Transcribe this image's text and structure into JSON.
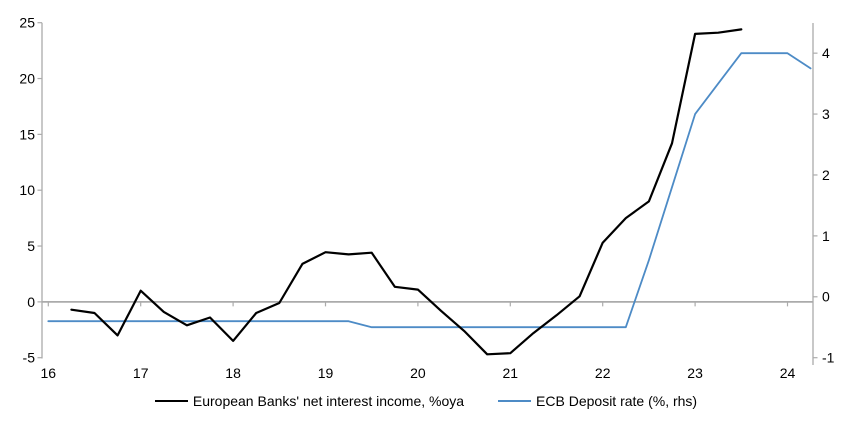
{
  "chart_data": {
    "type": "line",
    "title": "",
    "grid": "zero-line-only",
    "legend_position": "bottom",
    "axis_color": "#ababab",
    "x_axis": {
      "tick_labels": [
        "16",
        "17",
        "18",
        "19",
        "20",
        "21",
        "22",
        "23",
        "24"
      ],
      "tick_values": [
        16,
        17,
        18,
        19,
        20,
        21,
        22,
        23,
        24
      ]
    },
    "left_axis": {
      "tick_labels": [
        "25",
        "20",
        "15",
        "10",
        "5",
        "0",
        "-5"
      ],
      "tick_values": [
        25,
        20,
        15,
        10,
        5,
        0,
        -5
      ],
      "min": -5,
      "max": 25
    },
    "right_axis": {
      "tick_labels": [
        "4",
        "3",
        "2",
        "1",
        "0",
        "-1"
      ],
      "tick_values": [
        4,
        3,
        2,
        1,
        0,
        -1
      ],
      "min": -1,
      "max": 4.5
    },
    "series": [
      {
        "name": "European Banks' net interest income, %oya",
        "axis": "left",
        "color": "#000000",
        "stroke_width": 2.2,
        "x": [
          16.25,
          16.5,
          16.75,
          17.0,
          17.25,
          17.5,
          17.75,
          18.0,
          18.25,
          18.5,
          18.75,
          19.0,
          19.25,
          19.5,
          19.75,
          20.0,
          20.25,
          20.5,
          20.75,
          21.0,
          21.25,
          21.5,
          21.75,
          22.0,
          22.25,
          22.5,
          22.75,
          23.0,
          23.25,
          23.5
        ],
        "values": [
          -0.7,
          -1.0,
          -3.0,
          1.0,
          -0.9,
          -2.1,
          -1.4,
          -3.5,
          -1.0,
          -0.1,
          3.4,
          4.45,
          4.25,
          4.4,
          1.35,
          1.1,
          -0.8,
          -2.6,
          -4.7,
          -4.6,
          -2.8,
          -1.2,
          0.5,
          5.3,
          7.5,
          9.0,
          14.2,
          24.0,
          24.1,
          24.4
        ]
      },
      {
        "name": "ECB Deposit rate (%, rhs)",
        "axis": "right",
        "color": "#4d8bc6",
        "stroke_width": 1.8,
        "x": [
          16.0,
          16.25,
          16.5,
          16.75,
          17.0,
          17.25,
          17.5,
          17.75,
          18.0,
          18.25,
          18.5,
          18.75,
          19.0,
          19.25,
          19.5,
          19.75,
          20.0,
          20.25,
          20.5,
          20.75,
          21.0,
          21.25,
          21.5,
          21.75,
          22.0,
          22.25,
          22.5,
          22.75,
          23.0,
          23.25,
          23.5,
          23.75,
          24.0,
          24.25
        ],
        "values": [
          -0.4,
          -0.4,
          -0.4,
          -0.4,
          -0.4,
          -0.4,
          -0.4,
          -0.4,
          -0.4,
          -0.4,
          -0.4,
          -0.4,
          -0.4,
          -0.4,
          -0.5,
          -0.5,
          -0.5,
          -0.5,
          -0.5,
          -0.5,
          -0.5,
          -0.5,
          -0.5,
          -0.5,
          -0.5,
          -0.5,
          0.6,
          1.8,
          3.0,
          3.5,
          4.0,
          4.0,
          4.0,
          3.75
        ]
      }
    ]
  }
}
